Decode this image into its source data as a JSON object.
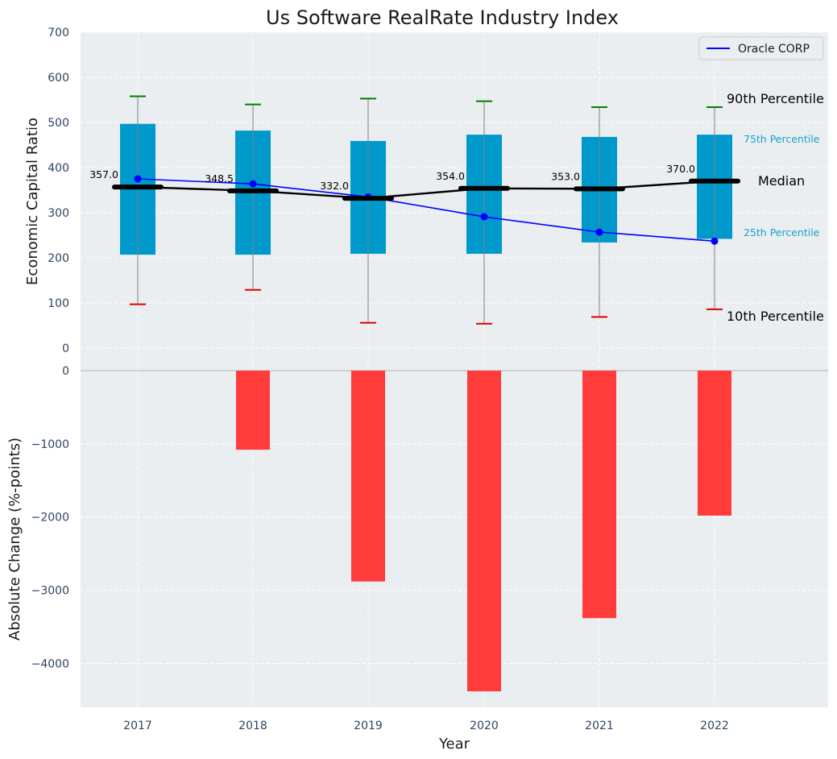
{
  "chart_data": [
    {
      "type": "box-percentile",
      "title": "Us Software RealRate Industry Index",
      "ylabel": "Economic Capital Ratio",
      "ylim": [
        0,
        700
      ],
      "yticks": [
        0,
        100,
        200,
        300,
        400,
        500,
        600,
        700
      ],
      "categories": [
        "2017",
        "2018",
        "2019",
        "2020",
        "2021",
        "2022"
      ],
      "p10": [
        97,
        129,
        56,
        54,
        69,
        86
      ],
      "p25": [
        207,
        207,
        209,
        209,
        234,
        242
      ],
      "median": [
        357.0,
        348.5,
        332.0,
        354.0,
        353.0,
        370.0
      ],
      "median_labels": [
        "357.0",
        "348.5",
        "332.0",
        "354.0",
        "353.0",
        "370.0"
      ],
      "p75": [
        497,
        482,
        459,
        473,
        468,
        473
      ],
      "p90": [
        558,
        540,
        553,
        547,
        534,
        534
      ],
      "company_series": {
        "name": "Oracle CORP",
        "values": [
          375,
          364,
          335,
          291,
          257,
          237
        ]
      },
      "annotations": {
        "p90": "90th Percentile",
        "p75": "75th Percentile",
        "median": "Median",
        "p25": "25th Percentile",
        "p10": "10th Percentile"
      },
      "legend": {
        "position": "upper-right",
        "entries": [
          "Oracle CORP"
        ]
      },
      "grid": true
    },
    {
      "type": "bar",
      "ylabel": "Absolute Change (%-points)",
      "xlabel": "Year",
      "ylim": [
        -4600,
        0
      ],
      "yticks": [
        0,
        -1000,
        -2000,
        -3000,
        -4000
      ],
      "ytick_labels": [
        "0",
        "−1000",
        "−2000",
        "−3000",
        "−4000"
      ],
      "categories": [
        "2017",
        "2018",
        "2019",
        "2020",
        "2021",
        "2022"
      ],
      "values": [
        0,
        -1080,
        -2880,
        -4380,
        -3380,
        -1980
      ],
      "grid": true
    }
  ],
  "colors": {
    "background": "#eaeef0",
    "box": "#0099cc",
    "median": "#000000",
    "company": "#0000ff",
    "p90_cap": "#008000",
    "p10_cap": "#e00000",
    "whisker": "#808080",
    "bars": "#ff3b3b",
    "p75_label": "#1aa0c8",
    "p25_label": "#1aa0c8"
  }
}
